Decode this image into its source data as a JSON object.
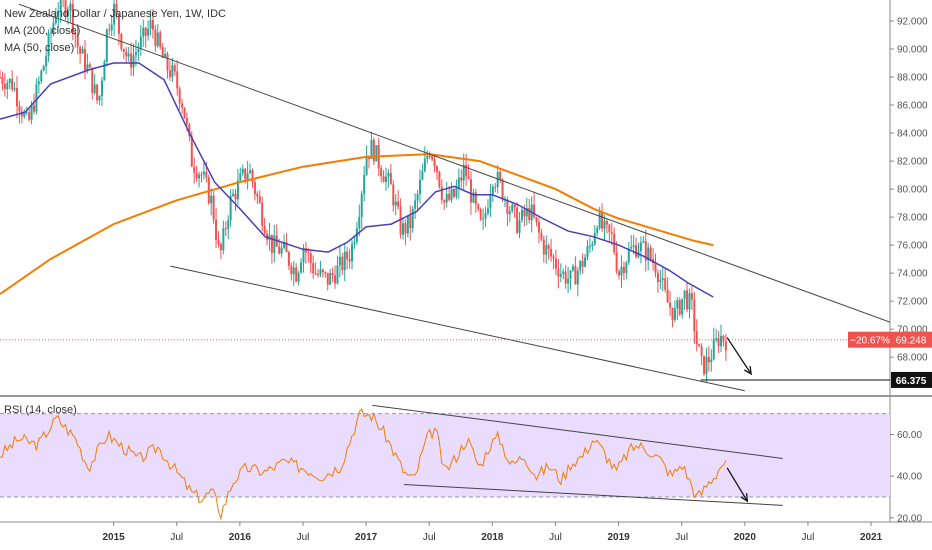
{
  "legend": {
    "title": "New Zealand Dollar / Japanese Yen, 1W, IDC",
    "ma200": "MA (200, close)",
    "ma50": "MA (50, close)",
    "rsi": "RSI (14, close)"
  },
  "price_label": {
    "change": "−20.67%",
    "price": "69.248"
  },
  "support_label": "66.375",
  "colors": {
    "up": "#26a69a",
    "down": "#ef5350",
    "ma200": "#f57c00",
    "ma50": "#4a3fb8",
    "rsi": "#f57c00",
    "rsi_band": "#e9dcff",
    "trendline": "#444444",
    "price_line": "#ef5350",
    "support_bg": "#111111"
  },
  "chart_data": [
    {
      "type": "candlestick",
      "title": "New Zealand Dollar / Japanese Yen, 1W, IDC",
      "y_ticks": [
        "68.000",
        "70.000",
        "72.000",
        "74.000",
        "76.000",
        "78.000",
        "80.000",
        "82.000",
        "84.000",
        "86.000",
        "88.000",
        "90.000",
        "92.000"
      ],
      "ylim": [
        65.3,
        93.5
      ],
      "x_ticks": [
        "2015",
        "Jul",
        "2016",
        "Jul",
        "2017",
        "Jul",
        "2018",
        "Jul",
        "2019",
        "Jul",
        "2020",
        "Jul",
        "2021"
      ],
      "xlim": [
        2014.1,
        2021.15
      ],
      "last_price": 69.248,
      "last_change_pct": -20.67,
      "support_level": 66.375,
      "price_path": [
        [
          2014.1,
          88.0
        ],
        [
          2014.2,
          87.5
        ],
        [
          2014.32,
          84.5
        ],
        [
          2014.45,
          89.0
        ],
        [
          2014.55,
          93.0
        ],
        [
          2014.65,
          93.2
        ],
        [
          2014.72,
          90.0
        ],
        [
          2014.8,
          88.5
        ],
        [
          2014.88,
          86.0
        ],
        [
          2014.95,
          91.5
        ],
        [
          2015.0,
          93.0
        ],
        [
          2015.05,
          91.0
        ],
        [
          2015.12,
          89.0
        ],
        [
          2015.22,
          90.5
        ],
        [
          2015.3,
          91.8
        ],
        [
          2015.4,
          89.0
        ],
        [
          2015.48,
          88.0
        ],
        [
          2015.55,
          86.0
        ],
        [
          2015.62,
          82.0
        ],
        [
          2015.7,
          81.0
        ],
        [
          2015.78,
          79.0
        ],
        [
          2015.84,
          75.0
        ],
        [
          2015.92,
          79.0
        ],
        [
          2016.0,
          80.5
        ],
        [
          2016.07,
          81.5
        ],
        [
          2016.15,
          79.0
        ],
        [
          2016.25,
          76.0
        ],
        [
          2016.35,
          75.5
        ],
        [
          2016.45,
          74.0
        ],
        [
          2016.5,
          76.0
        ],
        [
          2016.6,
          74.0
        ],
        [
          2016.7,
          73.5
        ],
        [
          2016.8,
          74.5
        ],
        [
          2016.88,
          75.5
        ],
        [
          2016.95,
          79.0
        ],
        [
          2017.0,
          82.5
        ],
        [
          2017.05,
          83.0
        ],
        [
          2017.12,
          81.5
        ],
        [
          2017.2,
          80.0
        ],
        [
          2017.28,
          77.0
        ],
        [
          2017.35,
          77.5
        ],
        [
          2017.42,
          80.0
        ],
        [
          2017.5,
          83.0
        ],
        [
          2017.55,
          82.0
        ],
        [
          2017.62,
          79.0
        ],
        [
          2017.7,
          79.5
        ],
        [
          2017.78,
          81.5
        ],
        [
          2017.85,
          79.0
        ],
        [
          2017.92,
          77.0
        ],
        [
          2018.0,
          81.0
        ],
        [
          2018.05,
          80.5
        ],
        [
          2018.12,
          79.0
        ],
        [
          2018.2,
          77.5
        ],
        [
          2018.3,
          78.5
        ],
        [
          2018.4,
          76.0
        ],
        [
          2018.48,
          75.0
        ],
        [
          2018.55,
          74.0
        ],
        [
          2018.62,
          73.5
        ],
        [
          2018.7,
          74.5
        ],
        [
          2018.78,
          76.0
        ],
        [
          2018.83,
          78.0
        ],
        [
          2018.88,
          77.0
        ],
        [
          2018.95,
          76.5
        ],
        [
          2019.0,
          74.0
        ],
        [
          2019.08,
          75.5
        ],
        [
          2019.15,
          76.0
        ],
        [
          2019.22,
          75.5
        ],
        [
          2019.3,
          74.5
        ],
        [
          2019.38,
          72.0
        ],
        [
          2019.45,
          71.0
        ],
        [
          2019.52,
          72.5
        ],
        [
          2019.58,
          71.5
        ],
        [
          2019.62,
          69.0
        ],
        [
          2019.66,
          67.3
        ],
        [
          2019.7,
          67.6
        ],
        [
          2019.75,
          68.5
        ],
        [
          2019.8,
          69.5
        ],
        [
          2019.86,
          69.2
        ]
      ],
      "ma200": [
        [
          2014.1,
          72.5
        ],
        [
          2014.5,
          75.0
        ],
        [
          2015.0,
          77.5
        ],
        [
          2015.5,
          79.2
        ],
        [
          2016.0,
          80.5
        ],
        [
          2016.5,
          81.6
        ],
        [
          2017.0,
          82.3
        ],
        [
          2017.5,
          82.5
        ],
        [
          2017.9,
          82.0
        ],
        [
          2018.2,
          81.0
        ],
        [
          2018.5,
          80.0
        ],
        [
          2018.8,
          78.6
        ],
        [
          2019.0,
          77.9
        ],
        [
          2019.3,
          77.1
        ],
        [
          2019.6,
          76.3
        ],
        [
          2019.75,
          76.0
        ]
      ],
      "ma50": [
        [
          2014.1,
          85.0
        ],
        [
          2014.3,
          85.5
        ],
        [
          2014.5,
          87.5
        ],
        [
          2014.8,
          88.5
        ],
        [
          2015.0,
          89.0
        ],
        [
          2015.2,
          89.0
        ],
        [
          2015.4,
          87.8
        ],
        [
          2015.6,
          84.0
        ],
        [
          2015.8,
          80.5
        ],
        [
          2016.0,
          78.6
        ],
        [
          2016.2,
          76.6
        ],
        [
          2016.5,
          75.7
        ],
        [
          2016.7,
          75.5
        ],
        [
          2016.85,
          76.2
        ],
        [
          2017.0,
          77.3
        ],
        [
          2017.2,
          77.5
        ],
        [
          2017.4,
          78.4
        ],
        [
          2017.55,
          79.8
        ],
        [
          2017.7,
          80.2
        ],
        [
          2017.85,
          79.6
        ],
        [
          2018.0,
          79.6
        ],
        [
          2018.2,
          78.9
        ],
        [
          2018.4,
          77.9
        ],
        [
          2018.6,
          77.0
        ],
        [
          2018.8,
          76.6
        ],
        [
          2019.0,
          76.0
        ],
        [
          2019.2,
          75.2
        ],
        [
          2019.4,
          74.2
        ],
        [
          2019.55,
          73.3
        ],
        [
          2019.75,
          72.3
        ]
      ],
      "trendlines": [
        {
          "x1": 2014.25,
          "y1": 93.2,
          "x2": 2021.15,
          "y2": 70.5
        },
        {
          "x1": 2015.45,
          "y1": 74.5,
          "x2": 2020.0,
          "y2": 65.6
        },
        {
          "x1": 2019.65,
          "y1": 66.375,
          "x2": 2021.15,
          "y2": 66.375
        }
      ],
      "arrow": {
        "x1": 2019.86,
        "y1": 69.4,
        "x2": 2020.05,
        "y2": 66.8
      }
    },
    {
      "type": "line",
      "title": "RSI (14, close)",
      "y_ticks": [
        "20.00",
        "40.00",
        "60.00"
      ],
      "ylim": [
        18,
        78
      ],
      "band": [
        30,
        70
      ],
      "series_path": [
        [
          2014.1,
          50
        ],
        [
          2014.25,
          58
        ],
        [
          2014.4,
          55
        ],
        [
          2014.55,
          68
        ],
        [
          2014.7,
          58
        ],
        [
          2014.8,
          44
        ],
        [
          2014.95,
          60
        ],
        [
          2015.05,
          55
        ],
        [
          2015.2,
          48
        ],
        [
          2015.35,
          54
        ],
        [
          2015.5,
          42
        ],
        [
          2015.62,
          32
        ],
        [
          2015.7,
          29
        ],
        [
          2015.78,
          33
        ],
        [
          2015.85,
          22
        ],
        [
          2015.95,
          38
        ],
        [
          2016.05,
          44
        ],
        [
          2016.2,
          42
        ],
        [
          2016.35,
          47
        ],
        [
          2016.5,
          44
        ],
        [
          2016.65,
          40
        ],
        [
          2016.8,
          45
        ],
        [
          2016.95,
          70
        ],
        [
          2017.05,
          69
        ],
        [
          2017.15,
          60
        ],
        [
          2017.3,
          42
        ],
        [
          2017.38,
          38
        ],
        [
          2017.48,
          58
        ],
        [
          2017.55,
          63
        ],
        [
          2017.62,
          42
        ],
        [
          2017.7,
          48
        ],
        [
          2017.8,
          58
        ],
        [
          2017.9,
          44
        ],
        [
          2017.98,
          55
        ],
        [
          2018.05,
          59
        ],
        [
          2018.15,
          45
        ],
        [
          2018.25,
          50
        ],
        [
          2018.35,
          40
        ],
        [
          2018.45,
          45
        ],
        [
          2018.55,
          38
        ],
        [
          2018.62,
          46
        ],
        [
          2018.72,
          50
        ],
        [
          2018.8,
          58
        ],
        [
          2018.88,
          52
        ],
        [
          2018.98,
          42
        ],
        [
          2019.08,
          52
        ],
        [
          2019.15,
          55
        ],
        [
          2019.25,
          52
        ],
        [
          2019.33,
          48
        ],
        [
          2019.42,
          40
        ],
        [
          2019.5,
          46
        ],
        [
          2019.56,
          38
        ],
        [
          2019.62,
          30
        ],
        [
          2019.66,
          32
        ],
        [
          2019.7,
          36
        ],
        [
          2019.76,
          40
        ],
        [
          2019.82,
          46
        ],
        [
          2019.86,
          45
        ]
      ],
      "trendlines": [
        {
          "x1": 2017.05,
          "y1": 74,
          "x2": 2020.3,
          "y2": 48.5
        },
        {
          "x1": 2017.3,
          "y1": 36,
          "x2": 2020.3,
          "y2": 26
        }
      ],
      "arrow": {
        "x1": 2019.86,
        "y1": 44,
        "x2": 2020.02,
        "y2": 28
      }
    }
  ]
}
